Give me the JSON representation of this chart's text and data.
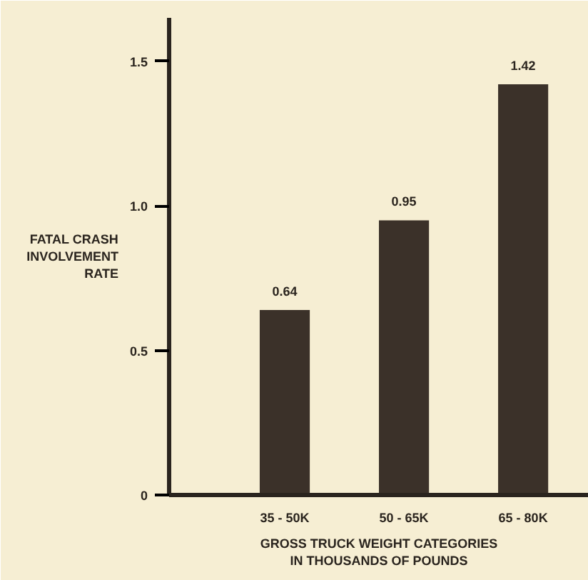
{
  "chart_data": {
    "type": "bar",
    "xlabel": "GROSS TRUCK WEIGHT CATEGORIES\nIN THOUSANDS OF POUNDS",
    "ylabel": "FATAL CRASH\nINVOLVEMENT\nRATE",
    "categories": [
      "35 - 50K",
      "50 - 65K",
      "65 - 80K"
    ],
    "values": [
      0.64,
      0.95,
      1.42
    ],
    "color": "#3b3129",
    "ylim": [
      0,
      1.65
    ],
    "yticks": [
      0,
      0.5,
      {
        "value": 1,
        "label": "1.0"
      },
      1.5
    ],
    "grid": false,
    "data_labels": true
  }
}
